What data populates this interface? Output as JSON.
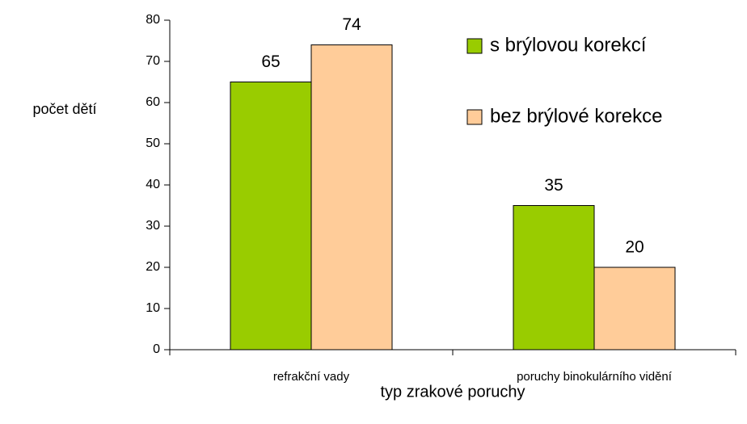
{
  "chart_data": {
    "type": "bar",
    "categories": [
      "refrakční vady",
      "poruchy binokulárního vidění"
    ],
    "series": [
      {
        "name": "s brýlovou korekcí",
        "color": "#99cc00",
        "values": [
          65,
          35
        ]
      },
      {
        "name": "bez brýlové korekce",
        "color": "#ffcc99",
        "values": [
          74,
          20
        ]
      }
    ],
    "y_label": "počet dětí",
    "x_label": "typ zrakové poruchy",
    "ylim": [
      0,
      80
    ],
    "yticks": [
      0,
      10,
      20,
      30,
      40,
      50,
      60,
      70,
      80
    ],
    "legend": "upper right"
  }
}
